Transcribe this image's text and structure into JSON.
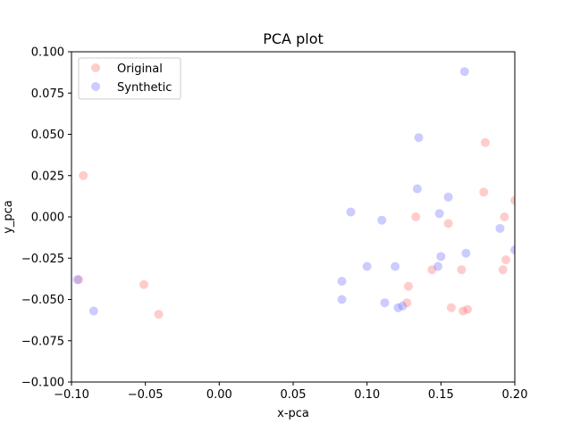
{
  "chart_data": {
    "type": "scatter",
    "title": "PCA plot",
    "xlabel": "x-pca",
    "ylabel": "y_pca",
    "xlim": [
      -0.1,
      0.2
    ],
    "ylim": [
      -0.1,
      0.1
    ],
    "xticks": [
      -0.1,
      -0.05,
      0.0,
      0.05,
      0.1,
      0.15,
      0.2
    ],
    "xtick_labels": [
      "−0.10",
      "−0.05",
      "0.00",
      "0.05",
      "0.10",
      "0.15",
      "0.20"
    ],
    "yticks": [
      -0.1,
      -0.075,
      -0.05,
      -0.025,
      0.0,
      0.025,
      0.05,
      0.075,
      0.1
    ],
    "ytick_labels": [
      "−0.100",
      "−0.075",
      "−0.050",
      "−0.025",
      "0.000",
      "0.025",
      "0.050",
      "0.075",
      "0.100"
    ],
    "grid": false,
    "legend_position": "top-left",
    "series": [
      {
        "name": "Original",
        "color": "#ff7f7f",
        "points": [
          [
            -0.092,
            0.025
          ],
          [
            -0.095,
            -0.038
          ],
          [
            -0.051,
            -0.041
          ],
          [
            -0.041,
            -0.059
          ],
          [
            0.133,
            0.0
          ],
          [
            0.155,
            -0.004
          ],
          [
            0.128,
            -0.042
          ],
          [
            0.127,
            -0.052
          ],
          [
            0.144,
            -0.032
          ],
          [
            0.157,
            -0.055
          ],
          [
            0.164,
            -0.032
          ],
          [
            0.165,
            -0.057
          ],
          [
            0.168,
            -0.056
          ],
          [
            0.179,
            0.015
          ],
          [
            0.18,
            0.045
          ],
          [
            0.192,
            -0.032
          ],
          [
            0.193,
            0.0
          ],
          [
            0.194,
            -0.026
          ],
          [
            0.2,
            0.01
          ]
        ]
      },
      {
        "name": "Synthetic",
        "color": "#7f7fff",
        "points": [
          [
            -0.096,
            -0.038
          ],
          [
            -0.085,
            -0.057
          ],
          [
            0.083,
            -0.039
          ],
          [
            0.083,
            -0.05
          ],
          [
            0.089,
            0.003
          ],
          [
            0.1,
            -0.03
          ],
          [
            0.11,
            -0.002
          ],
          [
            0.112,
            -0.052
          ],
          [
            0.119,
            -0.03
          ],
          [
            0.121,
            -0.055
          ],
          [
            0.124,
            -0.054
          ],
          [
            0.134,
            0.017
          ],
          [
            0.135,
            0.048
          ],
          [
            0.148,
            -0.03
          ],
          [
            0.149,
            0.002
          ],
          [
            0.15,
            -0.024
          ],
          [
            0.155,
            0.012
          ],
          [
            0.166,
            0.088
          ],
          [
            0.167,
            -0.022
          ],
          [
            0.19,
            -0.007
          ],
          [
            0.2,
            -0.02
          ]
        ]
      }
    ]
  }
}
